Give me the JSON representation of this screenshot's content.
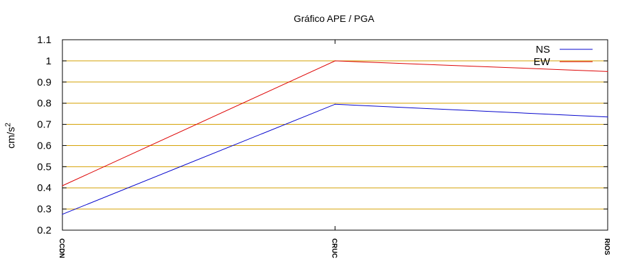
{
  "chart_data": {
    "type": "line",
    "title": "Gráfico  APE / PGA",
    "xlabel": "",
    "ylabel": "cm/s",
    "ylabel_superscript": "2",
    "categories": [
      "CCDN",
      "CRUC",
      "RIOS"
    ],
    "ylim": [
      0.2,
      1.1
    ],
    "yticks": [
      0.2,
      0.3,
      0.4,
      0.5,
      0.6,
      0.7,
      0.8,
      0.9,
      1,
      1.1
    ],
    "ytick_labels": [
      "0.2",
      "0.3",
      "0.4",
      "0.5",
      "0.6",
      "0.7",
      "0.8",
      "0.9",
      "1",
      "1.1"
    ],
    "grid": true,
    "grid_color": "#d4a000",
    "legend_position": "top-right",
    "series": [
      {
        "name": "NS",
        "color": "#0000cc",
        "values": [
          0.275,
          0.795,
          0.735
        ]
      },
      {
        "name": "EW",
        "color": "#dd0000",
        "values": [
          0.41,
          1.0,
          0.95
        ]
      }
    ]
  }
}
